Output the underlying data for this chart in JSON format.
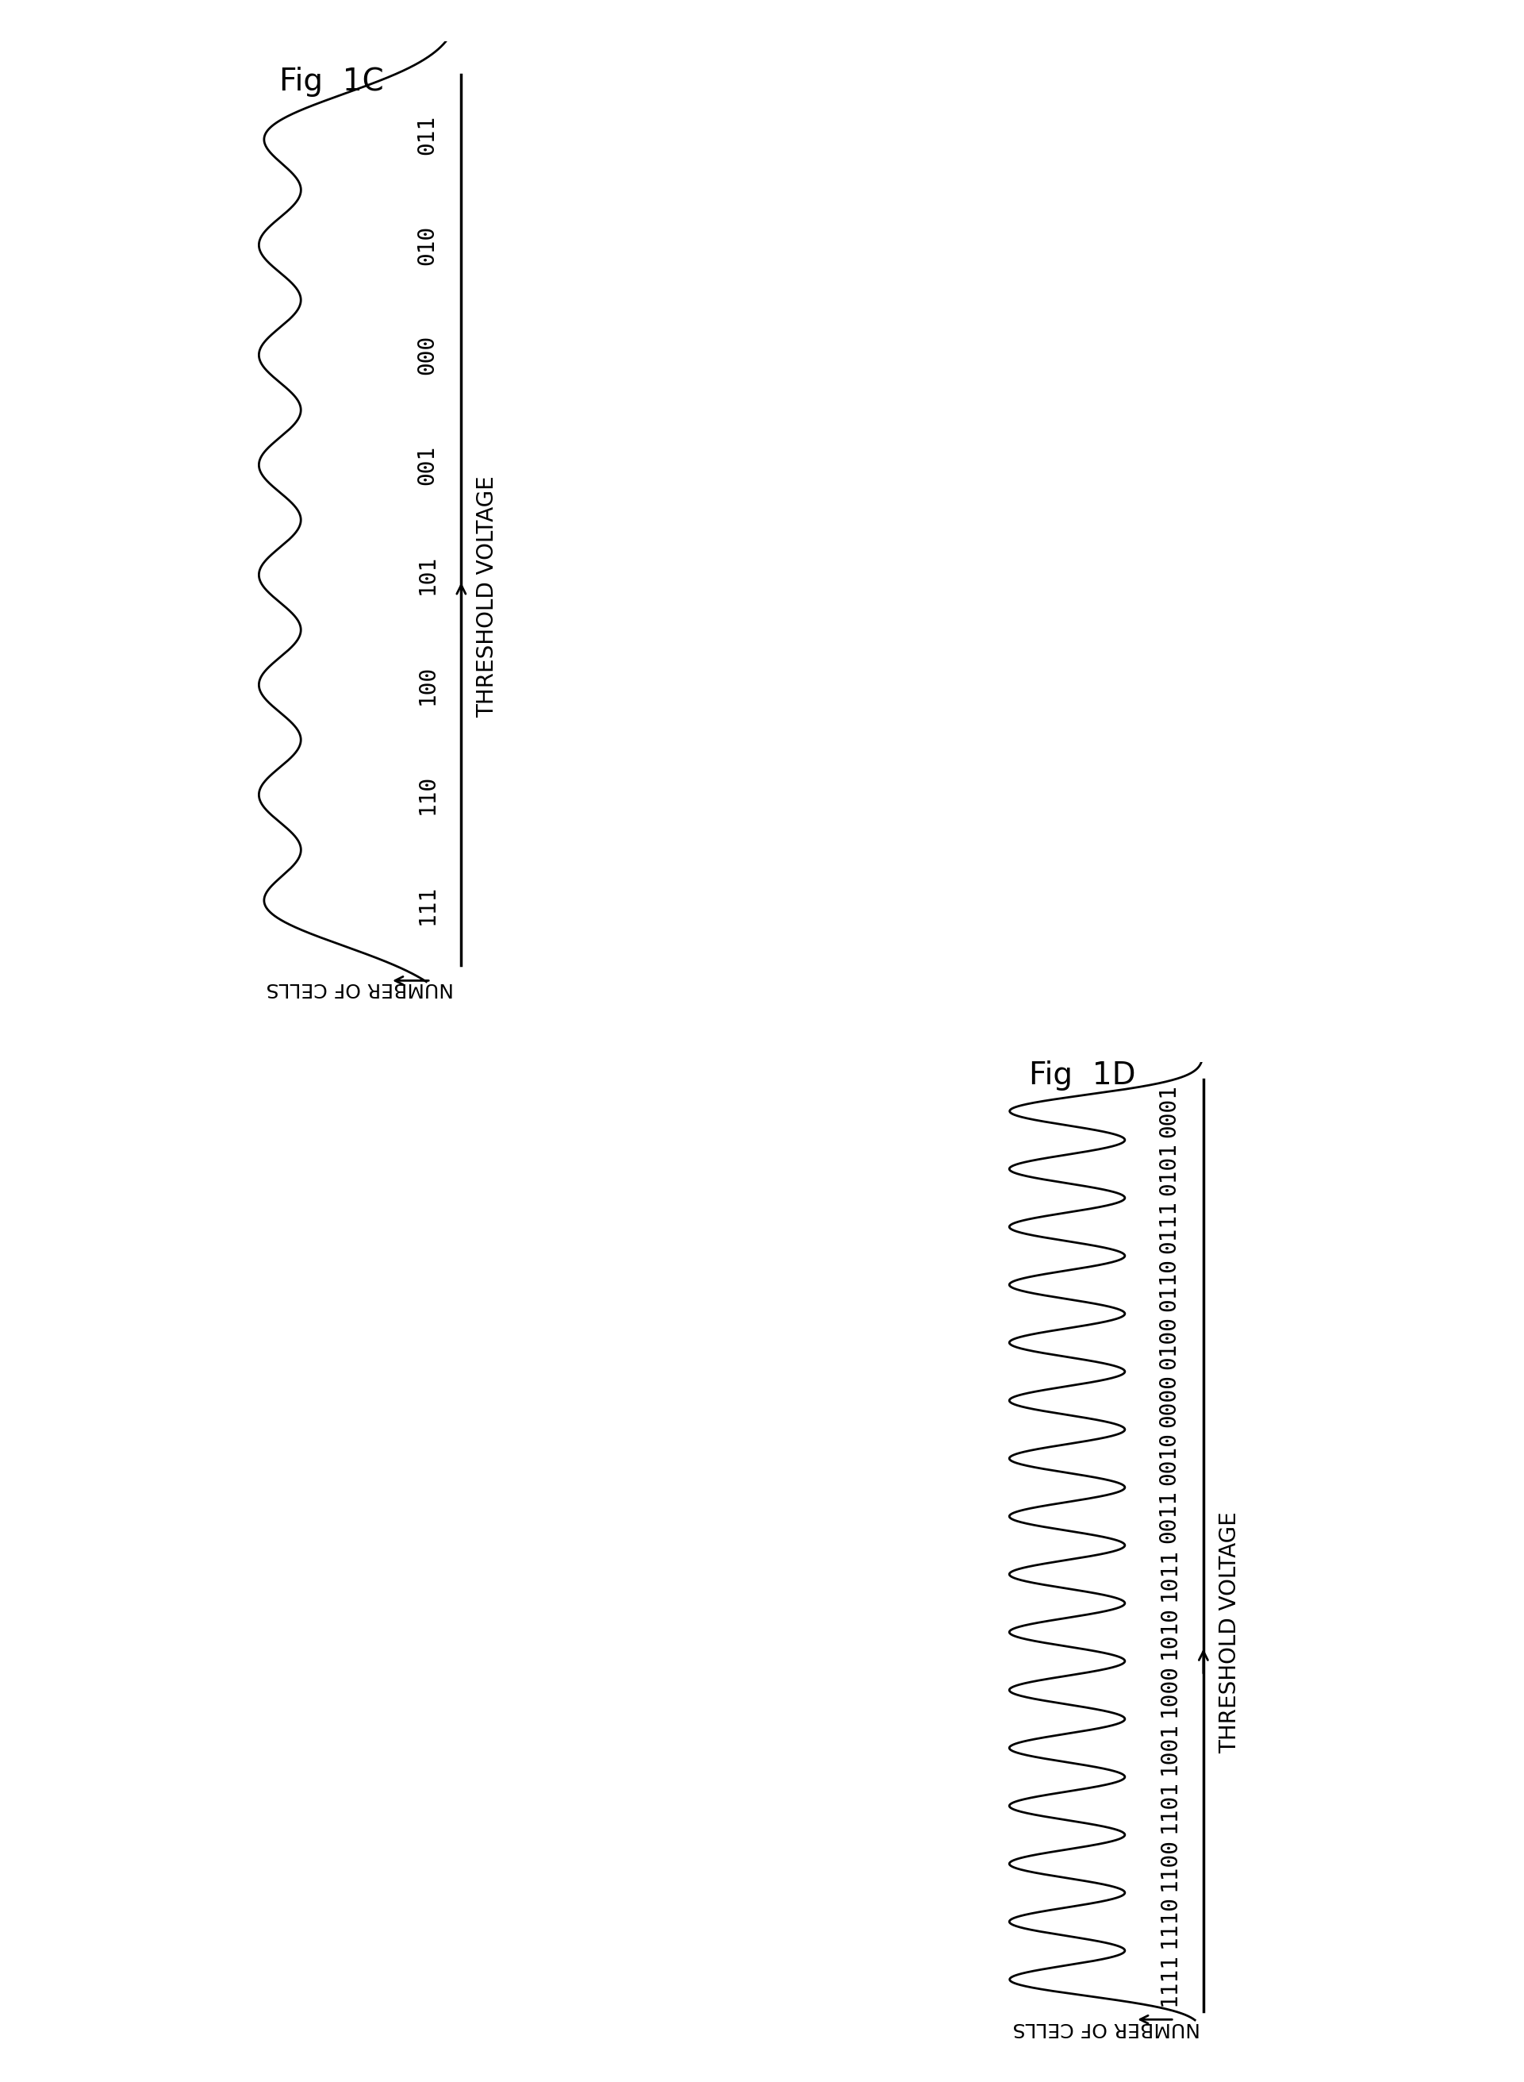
{
  "fig1c_title": "Fig  1C",
  "fig1d_title": "Fig  1D",
  "fig1c_labels": [
    "011",
    "010",
    "000",
    "001",
    "101",
    "100",
    "110",
    "111"
  ],
  "fig1d_labels": [
    "0001",
    "0101",
    "0111",
    "0110",
    "0100",
    "0000",
    "0010",
    "0011",
    "1011",
    "1010",
    "1000",
    "1001",
    "1101",
    "1100",
    "1110",
    "1111"
  ],
  "xlabel_tv": "THRESHOLD VOLTAGE",
  "ylabel_noc": "NUMBER OF CELLS",
  "background_color": "#ffffff",
  "line_color": "#000000",
  "axis_color": "#000000",
  "title_fontsize": 28,
  "label_fontsize": 20,
  "axis_label_fontsize": 18,
  "sigma_1c": 0.38,
  "sigma_1d": 0.28
}
